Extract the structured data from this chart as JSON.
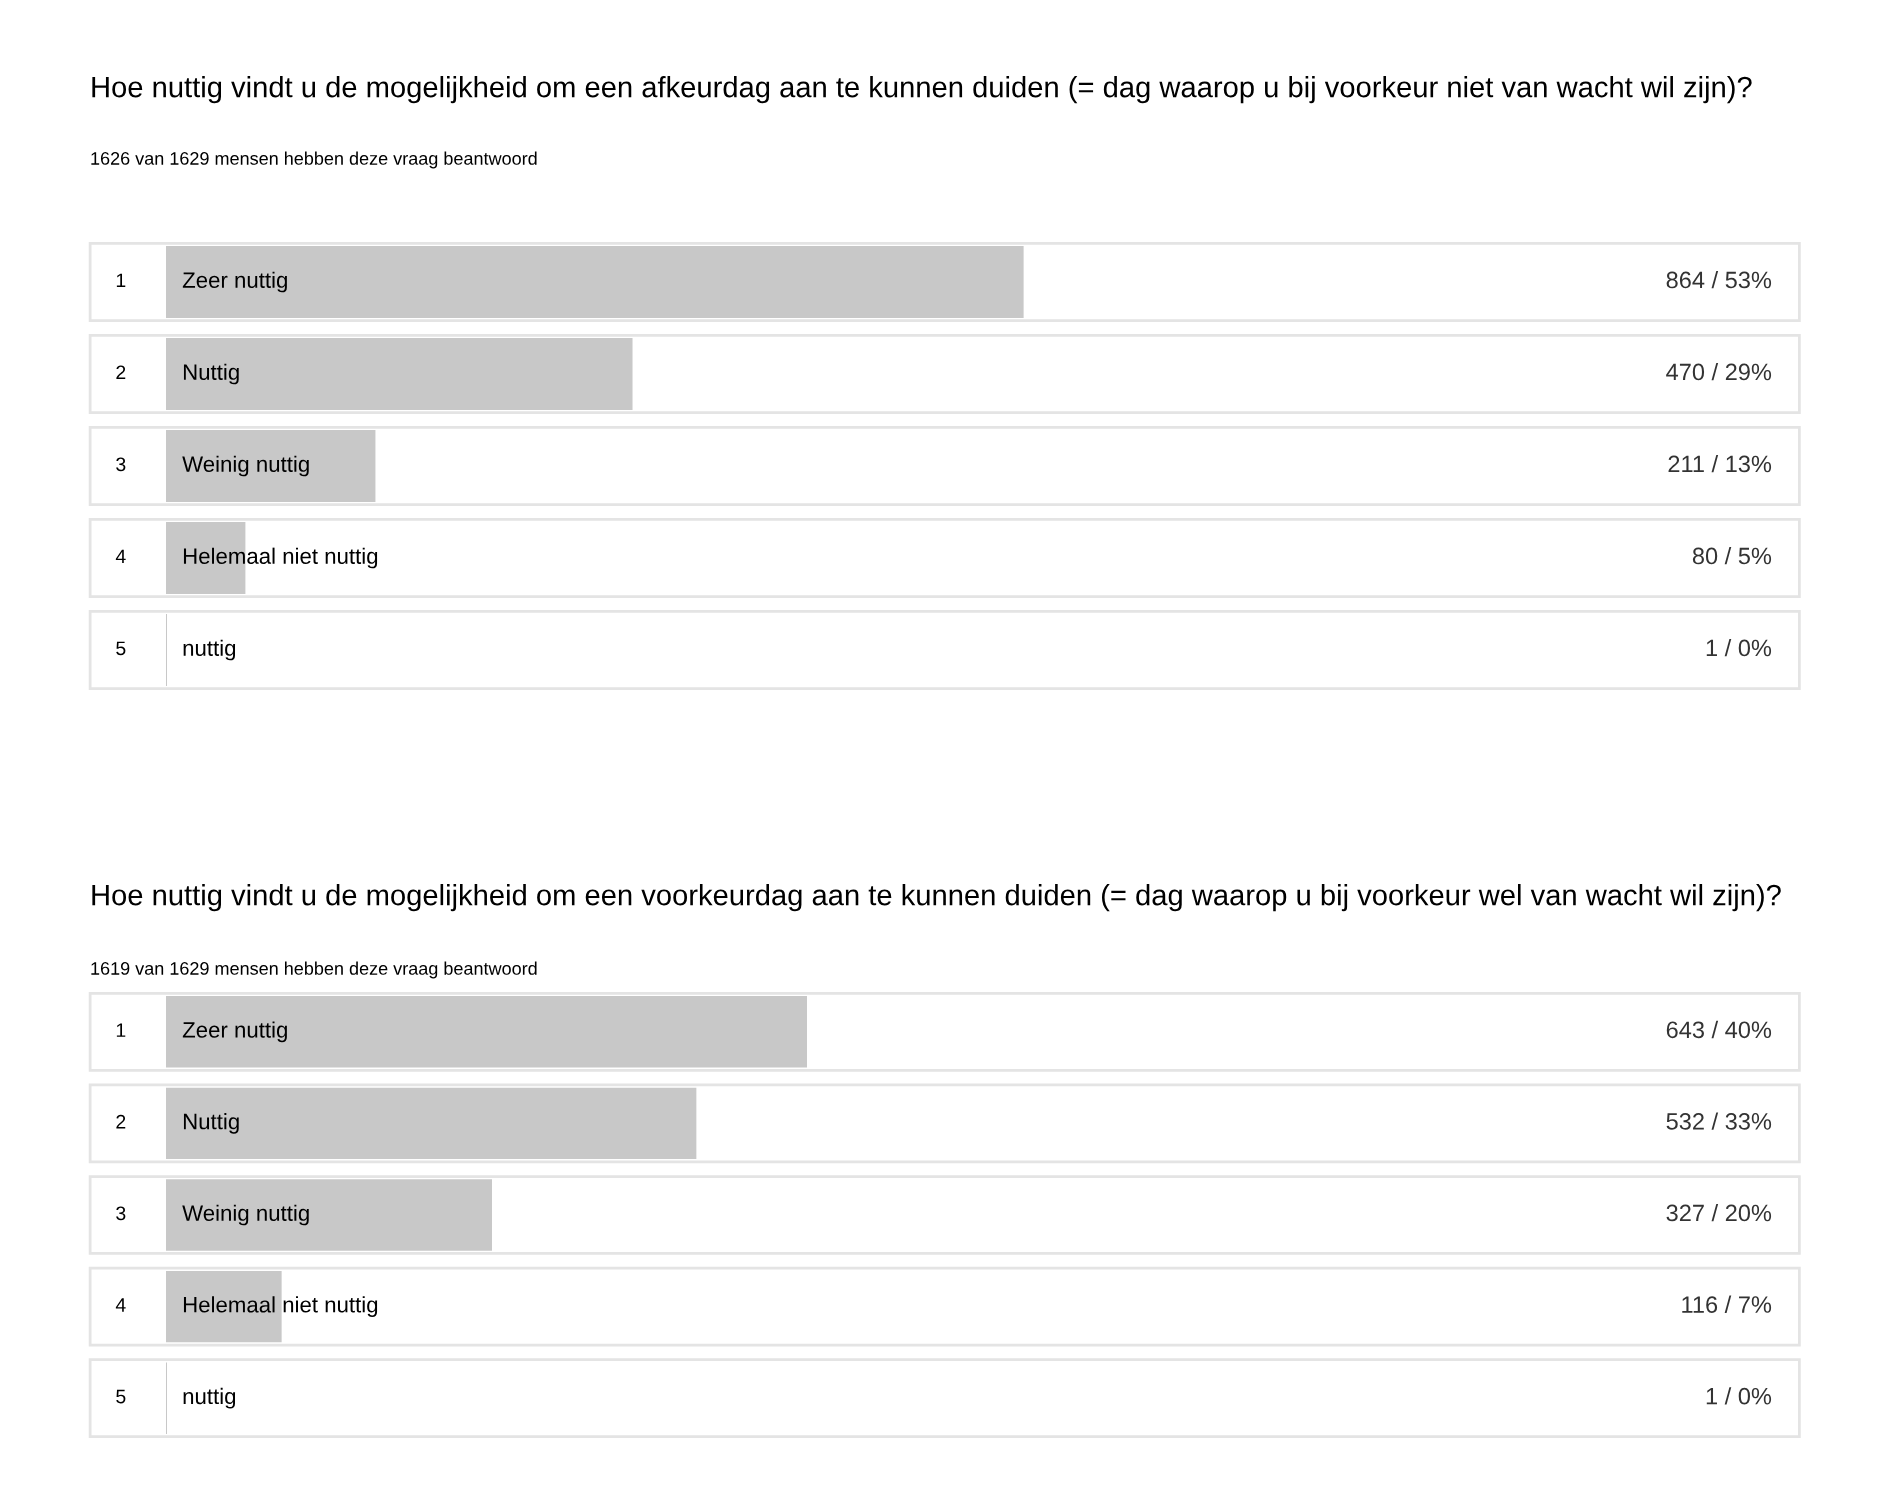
{
  "chart_data": [
    {
      "type": "bar",
      "orientation": "horizontal",
      "title": "Hoe nuttig vindt u de mogelijkheid om een afkeurdag aan te kunnen duiden (= dag waarop u bij voorkeur niet van wacht wil zijn)?",
      "subtitle": "1626 van 1629 mensen hebben deze vraag beantwoord",
      "categories": [
        "Zeer nuttig",
        "Nuttig",
        "Weinig nuttig",
        "Helemaal niet nuttig",
        "nuttig"
      ],
      "values": [
        864,
        470,
        211,
        80,
        1
      ],
      "value_labels": [
        "864 / 53%",
        "470 / 29%",
        "211 / 13%",
        "80 / 5%",
        "1 / 0%"
      ],
      "annotations": [
        "1",
        "2",
        "3",
        "4",
        "5"
      ],
      "color": "#c8c8c8"
    },
    {
      "type": "bar",
      "orientation": "horizontal",
      "title": "Hoe nuttig vindt u de mogelijkheid om een voorkeurdag aan te kunnen duiden (= dag waarop u bij voorkeur wel van wacht wil zijn)?",
      "subtitle": "1619 van 1629 mensen hebben deze vraag beantwoord",
      "categories": [
        "Zeer nuttig",
        "Nuttig",
        "Weinig nuttig",
        "Helemaal niet nuttig",
        "nuttig"
      ],
      "values": [
        643,
        532,
        327,
        116,
        1
      ],
      "value_labels": [
        "643 / 40%",
        "532 / 33%",
        "327 / 20%",
        "116 / 7%",
        "1 / 0%"
      ],
      "annotations": [
        "1",
        "2",
        "3",
        "4",
        "5"
      ],
      "color": "#c8c8c8"
    }
  ]
}
